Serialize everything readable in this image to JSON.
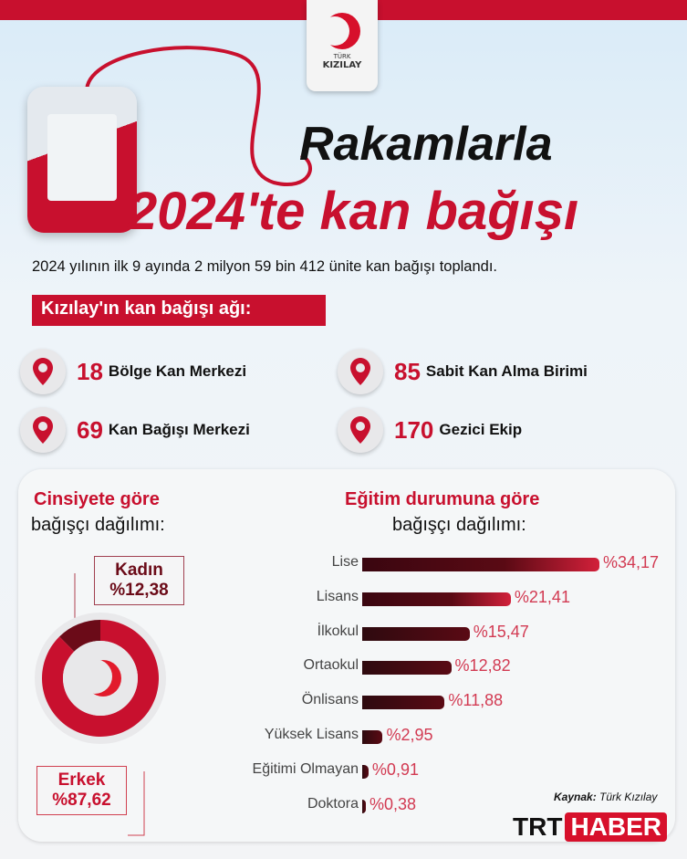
{
  "header": {
    "logo_small": "TÜRK",
    "logo_big": "KIZILAY",
    "title_line1": "Rakamlarla",
    "title_line2": "2024'te kan bağışı",
    "subtitle": "2024 yılının ilk 9 ayında 2 milyon 59 bin 412 ünite kan bağışı toplandı."
  },
  "network": {
    "label": "Kızılay'ın kan bağışı ağı:",
    "items": [
      {
        "number": "18",
        "name": "Bölge Kan Merkezi",
        "icon": "location-pin-icon"
      },
      {
        "number": "85",
        "name": "Sabit Kan Alma Birimi",
        "icon": "location-pin-icon"
      },
      {
        "number": "69",
        "name": "Kan Bağışı Merkezi",
        "icon": "location-pin-icon"
      },
      {
        "number": "170",
        "name": "Gezici Ekip",
        "icon": "location-pin-icon"
      }
    ]
  },
  "colors": {
    "brand_red": "#c8102e",
    "dark_red": "#5a0a14"
  },
  "chart_data": [
    {
      "type": "pie",
      "title_line1": "Cinsiyete göre",
      "title_line2": "bağışçı dağılımı:",
      "labels": [
        "Kadın",
        "Erkek"
      ],
      "value_labels": [
        "%12,38",
        "%87,62"
      ],
      "values": [
        12.38,
        87.62
      ],
      "colors": [
        "#6b0b18",
        "#c8102e"
      ]
    },
    {
      "type": "bar",
      "orientation": "horizontal",
      "title_line1": "Eğitim durumuna  göre",
      "title_line2": "bağışçı dağılımı:",
      "categories": [
        "Lise",
        "Lisans",
        "İlkokul",
        "Ortaokul",
        "Önlisans",
        "Yüksek Lisans",
        "Eğitimi Olmayan",
        "Doktora"
      ],
      "values": [
        34.17,
        21.41,
        15.47,
        12.82,
        11.88,
        2.95,
        0.91,
        0.38
      ],
      "value_labels": [
        "%34,17",
        "%21,41",
        "%15,47",
        "%12,82",
        "%11,88",
        "%2,95",
        "%0,91",
        "%0,38"
      ]
    }
  ],
  "footer": {
    "source_label": "Kaynak:",
    "source": "Türk Kızılay",
    "brand_a": "TRT",
    "brand_b": "HABER"
  }
}
